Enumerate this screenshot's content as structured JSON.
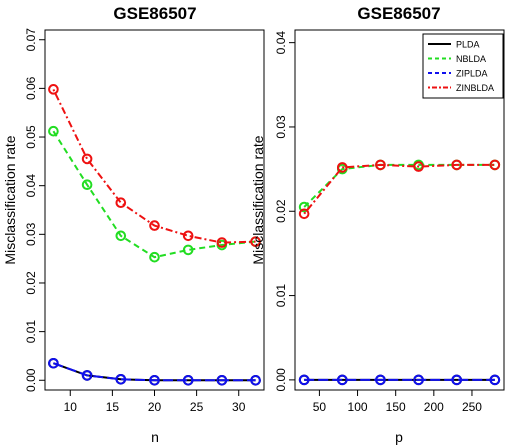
{
  "chart_data": [
    {
      "type": "line",
      "title": "GSE86507",
      "xlabel": "n",
      "ylabel": "Misclassification rate",
      "x": [
        8,
        12,
        16,
        20,
        24,
        28,
        32
      ],
      "xlim": [
        7,
        33
      ],
      "ylim": [
        -0.002,
        0.072
      ],
      "xticks": [
        10,
        15,
        20,
        25,
        30
      ],
      "yticks": [
        0.0,
        0.01,
        0.02,
        0.03,
        0.04,
        0.05,
        0.06,
        0.07
      ],
      "ytick_labels": [
        "0.00",
        "0.01",
        "0.02",
        "0.03",
        "0.04",
        "0.05",
        "0.06",
        "0.07"
      ],
      "legend": false,
      "series": [
        {
          "name": "PLDA",
          "color": "#000000",
          "dash": "solid",
          "values": [
            0.0035,
            0.001,
            0.0002,
            0.0,
            0.0,
            0.0,
            0.0
          ]
        },
        {
          "name": "NBLDA",
          "color": "#22dd22",
          "dash": "dashed",
          "values": [
            0.0512,
            0.0402,
            0.0297,
            0.0253,
            0.0268,
            0.0278,
            0.0285
          ]
        },
        {
          "name": "ZIPLDA",
          "color": "#1010ee",
          "dash": "longdash",
          "values": [
            0.0035,
            0.001,
            0.0002,
            0.0,
            0.0,
            0.0,
            0.0
          ]
        },
        {
          "name": "ZINBLDA",
          "color": "#ee1111",
          "dash": "dotdash",
          "values": [
            0.0598,
            0.0455,
            0.0365,
            0.0318,
            0.0297,
            0.0283,
            0.0285
          ]
        }
      ]
    },
    {
      "type": "line",
      "title": "GSE86507",
      "xlabel": "p",
      "ylabel": "Misclassification rate",
      "x": [
        30,
        80,
        130,
        180,
        230,
        280
      ],
      "xlim": [
        18,
        292
      ],
      "ylim": [
        -0.0012,
        0.0415
      ],
      "xticks": [
        50,
        100,
        150,
        200,
        250
      ],
      "yticks": [
        0.0,
        0.01,
        0.02,
        0.03,
        0.04
      ],
      "ytick_labels": [
        "0.00",
        "0.01",
        "0.02",
        "0.03",
        "0.04"
      ],
      "legend": true,
      "legend_position": "top-right",
      "series": [
        {
          "name": "PLDA",
          "color": "#000000",
          "dash": "solid",
          "values": [
            0.0,
            0.0,
            0.0,
            0.0,
            0.0,
            0.0
          ]
        },
        {
          "name": "NBLDA",
          "color": "#22dd22",
          "dash": "dashed",
          "values": [
            0.0205,
            0.025,
            0.0255,
            0.0255,
            0.0255,
            0.0255
          ]
        },
        {
          "name": "ZIPLDA",
          "color": "#1010ee",
          "dash": "longdash",
          "values": [
            0.0,
            0.0,
            0.0,
            0.0,
            0.0,
            0.0
          ]
        },
        {
          "name": "ZINBLDA",
          "color": "#ee1111",
          "dash": "dotdash",
          "values": [
            0.0197,
            0.0252,
            0.0255,
            0.0253,
            0.0255,
            0.0255
          ]
        }
      ]
    }
  ]
}
